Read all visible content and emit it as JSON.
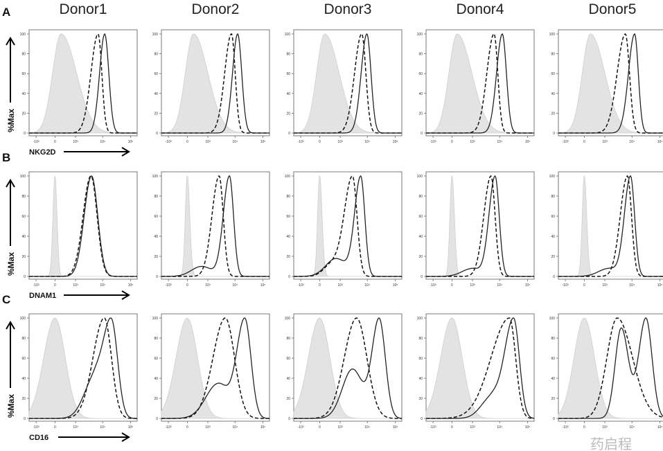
{
  "figure": {
    "columns": [
      "Donor1",
      "Donor2",
      "Donor3",
      "Donor4",
      "Donor5"
    ],
    "rows": [
      {
        "letter": "A",
        "marker": "NKG2D"
      },
      {
        "letter": "B",
        "marker": "DNAM1"
      },
      {
        "letter": "C",
        "marker": "CD16"
      }
    ],
    "ylabel": "%Max",
    "watermark": "药启程"
  },
  "chart_data": {
    "type": "histogram-grid",
    "ylabel": "%Max",
    "ylim": [
      0,
      100
    ],
    "yticks": [
      0,
      20,
      40,
      60,
      80,
      100
    ],
    "x_scale": "biexponential (units: transformed display units)",
    "xlim": [
      -1.26,
      4.0
    ],
    "xticks": [
      {
        "label": "-10³",
        "u": -0.92
      },
      {
        "label": "0",
        "u": 0
      },
      {
        "label": "10³",
        "u": 1.0
      },
      {
        "label": "10⁴",
        "u": 2.32
      },
      {
        "label": "10⁵",
        "u": 3.68
      }
    ],
    "series_styles": {
      "isotype": "grey filled",
      "dashed": "dashed line",
      "solid": "solid line"
    },
    "panels": [
      {
        "row": "A",
        "col": "Donor1",
        "isotype": [
          [
            0.3,
            0.42,
            0.75,
            1
          ]
        ],
        "dashed": [
          [
            2.1,
            0.35,
            0.18,
            1
          ]
        ],
        "solid": [
          [
            2.42,
            0.25,
            0.2,
            1
          ]
        ]
      },
      {
        "row": "A",
        "col": "Donor2",
        "isotype": [
          [
            0.3,
            0.4,
            0.7,
            1
          ]
        ],
        "dashed": [
          [
            2.15,
            0.33,
            0.18,
            1
          ]
        ],
        "solid": [
          [
            2.45,
            0.25,
            0.2,
            1
          ]
        ]
      },
      {
        "row": "A",
        "col": "Donor3",
        "isotype": [
          [
            0.25,
            0.4,
            0.7,
            1
          ]
        ],
        "dashed": [
          [
            2.05,
            0.35,
            0.2,
            1
          ]
        ],
        "solid": [
          [
            2.3,
            0.28,
            0.2,
            1
          ]
        ]
      },
      {
        "row": "A",
        "col": "Donor4",
        "isotype": [
          [
            0.25,
            0.4,
            0.72,
            1
          ]
        ],
        "dashed": [
          [
            2.05,
            0.35,
            0.18,
            1
          ]
        ],
        "solid": [
          [
            2.45,
            0.28,
            0.2,
            1
          ]
        ]
      },
      {
        "row": "A",
        "col": "Donor5",
        "isotype": [
          [
            0.3,
            0.4,
            0.7,
            1
          ]
        ],
        "dashed": [
          [
            2.0,
            0.4,
            0.2,
            1
          ]
        ],
        "solid": [
          [
            2.45,
            0.3,
            0.18,
            1
          ]
        ]
      },
      {
        "row": "B",
        "col": "Donor1",
        "isotype": [
          [
            0.0,
            0.1,
            0.1,
            1
          ]
        ],
        "dashed": [
          [
            1.75,
            0.38,
            0.3,
            1
          ]
        ],
        "solid": [
          [
            1.78,
            0.36,
            0.3,
            1
          ]
        ]
      },
      {
        "row": "B",
        "col": "Donor2",
        "isotype": [
          [
            0.0,
            0.1,
            0.12,
            1
          ]
        ],
        "dashed": [
          [
            1.55,
            0.35,
            0.2,
            1
          ]
        ],
        "solid": [
          [
            2.05,
            0.3,
            0.2,
            1
          ],
          [
            0.7,
            0.5,
            0.5,
            0.1
          ]
        ]
      },
      {
        "row": "B",
        "col": "Donor3",
        "isotype": [
          [
            0.0,
            0.1,
            0.12,
            1
          ]
        ],
        "dashed": [
          [
            1.6,
            0.4,
            0.22,
            1
          ],
          [
            0.6,
            0.4,
            0.4,
            0.12
          ]
        ],
        "solid": [
          [
            2.0,
            0.3,
            0.2,
            1
          ],
          [
            0.8,
            0.5,
            0.5,
            0.18
          ]
        ]
      },
      {
        "row": "B",
        "col": "Donor4",
        "isotype": [
          [
            0.0,
            0.1,
            0.12,
            1
          ]
        ],
        "dashed": [
          [
            1.9,
            0.35,
            0.2,
            1
          ]
        ],
        "solid": [
          [
            2.1,
            0.3,
            0.2,
            1
          ],
          [
            1.0,
            0.5,
            0.4,
            0.08
          ]
        ]
      },
      {
        "row": "B",
        "col": "Donor5",
        "isotype": [
          [
            0.0,
            0.1,
            0.12,
            1
          ]
        ],
        "dashed": [
          [
            2.1,
            0.35,
            0.2,
            1
          ]
        ],
        "solid": [
          [
            2.25,
            0.3,
            0.2,
            1
          ],
          [
            1.2,
            0.5,
            0.4,
            0.08
          ]
        ]
      },
      {
        "row": "C",
        "col": "Donor1",
        "isotype": [
          [
            0.0,
            0.55,
            0.5,
            1
          ]
        ],
        "dashed": [
          [
            2.4,
            0.55,
            0.35,
            1
          ]
        ],
        "solid": [
          [
            2.75,
            0.4,
            0.3,
            1
          ],
          [
            1.9,
            0.5,
            0.4,
            0.4
          ]
        ]
      },
      {
        "row": "C",
        "col": "Donor2",
        "isotype": [
          [
            0.0,
            0.55,
            0.5,
            1
          ]
        ],
        "dashed": [
          [
            1.85,
            0.6,
            0.45,
            1
          ]
        ],
        "solid": [
          [
            2.8,
            0.4,
            0.3,
            1
          ],
          [
            1.5,
            0.6,
            0.5,
            0.35
          ]
        ]
      },
      {
        "row": "C",
        "col": "Donor3",
        "isotype": [
          [
            0.0,
            0.55,
            0.5,
            1
          ]
        ],
        "dashed": [
          [
            1.8,
            0.6,
            0.5,
            1
          ]
        ],
        "solid": [
          [
            2.9,
            0.35,
            0.3,
            1
          ],
          [
            1.6,
            0.5,
            0.5,
            0.5
          ]
        ]
      },
      {
        "row": "C",
        "col": "Donor4",
        "isotype": [
          [
            0.0,
            0.55,
            0.5,
            1
          ]
        ],
        "dashed": [
          [
            2.8,
            0.9,
            0.3,
            1
          ]
        ],
        "solid": [
          [
            3.0,
            0.45,
            0.28,
            1
          ],
          [
            1.9,
            0.5,
            0.4,
            0.2
          ]
        ]
      },
      {
        "row": "C",
        "col": "Donor5",
        "isotype": [
          [
            0.0,
            0.5,
            0.5,
            1
          ]
        ],
        "dashed": [
          [
            1.6,
            0.5,
            0.75,
            1
          ]
        ],
        "solid": [
          [
            1.8,
            0.3,
            0.35,
            0.9
          ],
          [
            3.0,
            0.35,
            0.3,
            1
          ]
        ]
      }
    ]
  }
}
